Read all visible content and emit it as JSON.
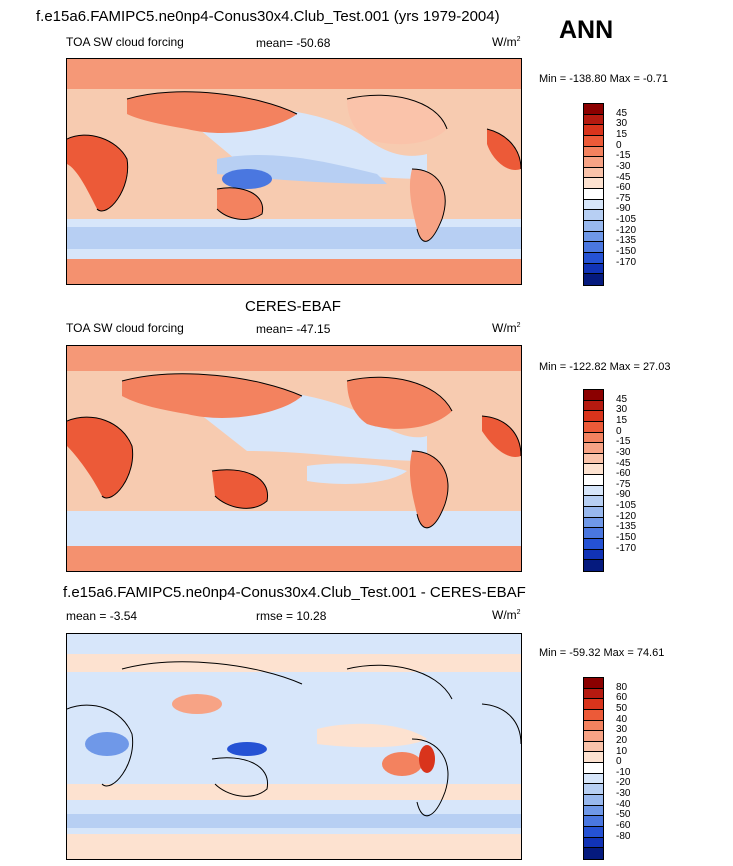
{
  "header": {
    "title": "f.e15a6.FAMIPC5.ne0np4-Conus30x4.Club_Test.001 (yrs 1979-2004)",
    "season": "ANN"
  },
  "colors": {
    "ocean_main": "#f7cbb0",
    "land": "#e9734f",
    "blue_band": "#a8c6f0",
    "pale_blue": "#d7e6fa",
    "pale_orange": "#fde2d0",
    "dark_blue": "#2f5fd8",
    "coast": "#000000"
  },
  "panels": [
    {
      "id": "model",
      "top_title": "",
      "left_label": "TOA SW cloud forcing",
      "mid_label": "mean= -50.68",
      "unit_base": "W/m",
      "unit_sup": "2",
      "minmax": "Min = -138.80 Max =  -0.71",
      "colorbar": {
        "levels": [
          "45",
          "30",
          "15",
          "0",
          "-15",
          "-30",
          "-45",
          "-60",
          "-75",
          "-90",
          "-105",
          "-120",
          "-135",
          "-150",
          "-170"
        ],
        "colors": [
          "#8b0000",
          "#b51a10",
          "#d9341c",
          "#ec5a38",
          "#f3825f",
          "#f7a385",
          "#fac3aa",
          "#fde2d0",
          "#ffffff",
          "#d7e6fa",
          "#b7cff3",
          "#98b8ee",
          "#6f98e8",
          "#4a77e0",
          "#2552d4",
          "#1133b6",
          "#051a7e"
        ]
      }
    },
    {
      "id": "obs",
      "top_title": "CERES-EBAF",
      "left_label": "TOA SW cloud forcing",
      "mid_label": "mean= -47.15",
      "unit_base": "W/m",
      "unit_sup": "2",
      "minmax": "Min = -122.82 Max =  27.03",
      "colorbar": {
        "levels": [
          "45",
          "30",
          "15",
          "0",
          "-15",
          "-30",
          "-45",
          "-60",
          "-75",
          "-90",
          "-105",
          "-120",
          "-135",
          "-150",
          "-170"
        ],
        "colors": [
          "#8b0000",
          "#b51a10",
          "#d9341c",
          "#ec5a38",
          "#f3825f",
          "#f7a385",
          "#fac3aa",
          "#fde2d0",
          "#ffffff",
          "#d7e6fa",
          "#b7cff3",
          "#98b8ee",
          "#6f98e8",
          "#4a77e0",
          "#2552d4",
          "#1133b6",
          "#051a7e"
        ]
      }
    },
    {
      "id": "diff",
      "top_title": "f.e15a6.FAMIPC5.ne0np4-Conus30x4.Club_Test.001 - CERES-EBAF",
      "left_label": "mean =  -3.54",
      "mid_label": "rmse =  10.28",
      "unit_base": "W/m",
      "unit_sup": "2",
      "minmax": "Min = -59.32 Max =  74.61",
      "colorbar": {
        "levels": [
          "80",
          "60",
          "50",
          "40",
          "30",
          "20",
          "10",
          "0",
          "-10",
          "-20",
          "-30",
          "-40",
          "-50",
          "-60",
          "-80"
        ],
        "colors": [
          "#8b0000",
          "#b51a10",
          "#d9341c",
          "#ec5a38",
          "#f3825f",
          "#f7a385",
          "#fac3aa",
          "#fde2d0",
          "#ffffff",
          "#d7e6fa",
          "#b7cff3",
          "#98b8ee",
          "#6f98e8",
          "#4a77e0",
          "#2552d4",
          "#1133b6",
          "#051a7e"
        ]
      }
    }
  ],
  "chart_data": [
    {
      "type": "heatmap",
      "title": "TOA SW cloud forcing (model, ANN)",
      "mean": -50.68,
      "min": -138.8,
      "max": -0.71,
      "unit": "W/m2",
      "contour_levels": [
        -170,
        -150,
        -135,
        -120,
        -105,
        -90,
        -75,
        -60,
        -45,
        -30,
        -15,
        0,
        15,
        30,
        45
      ]
    },
    {
      "type": "heatmap",
      "title": "TOA SW cloud forcing (CERES-EBAF)",
      "mean": -47.15,
      "min": -122.82,
      "max": 27.03,
      "unit": "W/m2",
      "contour_levels": [
        -170,
        -150,
        -135,
        -120,
        -105,
        -90,
        -75,
        -60,
        -45,
        -30,
        -15,
        0,
        15,
        30,
        45
      ]
    },
    {
      "type": "heatmap",
      "title": "Model - CERES-EBAF",
      "mean": -3.54,
      "rmse": 10.28,
      "min": -59.32,
      "max": 74.61,
      "unit": "W/m2",
      "contour_levels": [
        -80,
        -60,
        -50,
        -40,
        -30,
        -20,
        -10,
        0,
        10,
        20,
        30,
        40,
        50,
        60,
        80
      ]
    }
  ]
}
